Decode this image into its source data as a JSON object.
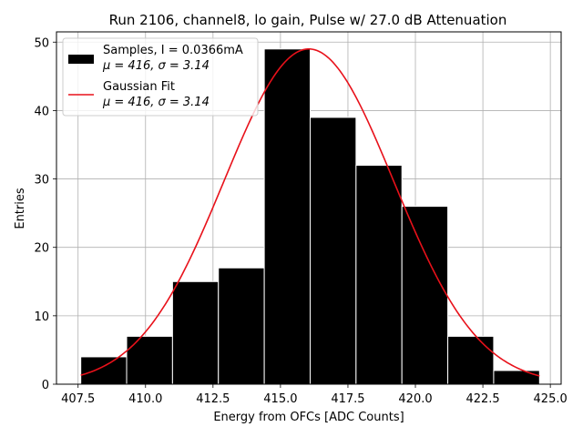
{
  "chart_data": {
    "type": "bar",
    "title": "Run 2106, channel8, lo gain, Pulse w/ 27.0 dB Attenuation",
    "xlabel": "Energy from OFCs [ADC Counts]",
    "ylabel": "Entries",
    "xlim": [
      406.7,
      425.4
    ],
    "ylim": [
      0,
      51.5
    ],
    "xticks": [
      407.5,
      410.0,
      412.5,
      415.0,
      417.5,
      420.0,
      422.5,
      425.0
    ],
    "xtick_labels": [
      "407.5",
      "410.0",
      "412.5",
      "415.0",
      "417.5",
      "420.0",
      "422.5",
      "425.0"
    ],
    "yticks": [
      0,
      10,
      20,
      30,
      40,
      50
    ],
    "ytick_labels": [
      "0",
      "10",
      "20",
      "30",
      "40",
      "50"
    ],
    "grid": true,
    "legend_position": "top-left",
    "bins": [
      {
        "x0": 407.6,
        "x1": 409.3,
        "count": 4
      },
      {
        "x0": 409.3,
        "x1": 411.0,
        "count": 7
      },
      {
        "x0": 411.0,
        "x1": 412.7,
        "count": 15
      },
      {
        "x0": 412.7,
        "x1": 414.4,
        "count": 17
      },
      {
        "x0": 414.4,
        "x1": 416.1,
        "count": 49
      },
      {
        "x0": 416.1,
        "x1": 417.8,
        "count": 39
      },
      {
        "x0": 417.8,
        "x1": 419.5,
        "count": 32
      },
      {
        "x0": 419.5,
        "x1": 421.2,
        "count": 26
      },
      {
        "x0": 421.2,
        "x1": 422.9,
        "count": 7
      },
      {
        "x0": 422.9,
        "x1": 424.6,
        "count": 2
      }
    ],
    "series": [
      {
        "name": "Samples, I = 0.0366mA",
        "stats": "μ = 416, σ = 3.14",
        "kind": "histogram",
        "color": "#000000"
      },
      {
        "name": "Gaussian Fit",
        "stats": "μ = 416, σ = 3.14",
        "kind": "line",
        "color": "#e8111a",
        "mu": 416.05,
        "sigma": 3.14,
        "amplitude": 49.0,
        "x_range": [
          407.6,
          424.6
        ]
      }
    ]
  }
}
